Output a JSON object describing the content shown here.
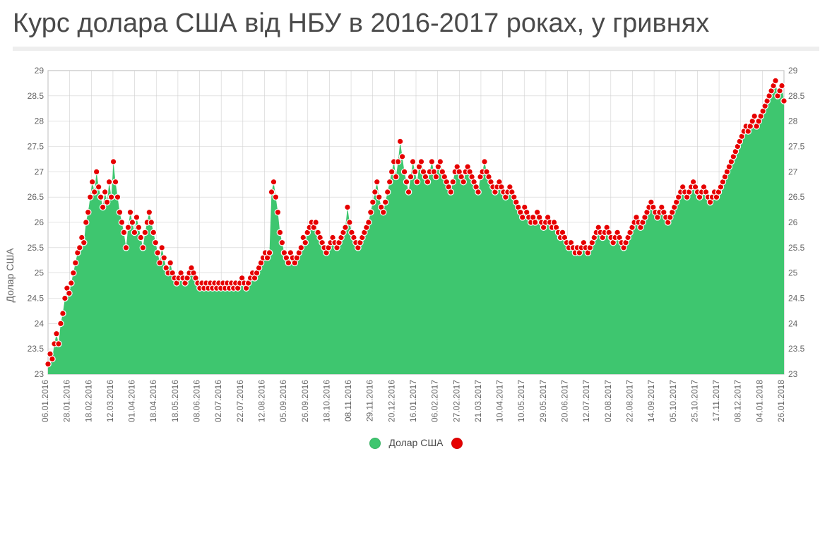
{
  "title": "Курс долара США від НБУ в 2016-2017 роках, у гривнях",
  "y_axis_label": "Долар США",
  "legend_label": "Долар США",
  "chart": {
    "type": "area_with_markers",
    "background_color": "#ffffff",
    "grid_color": "#d0d0d0",
    "area_fill_color": "#3ec66f",
    "marker_color": "#e60000",
    "marker_stroke": "#ffffff",
    "marker_radius": 4.2,
    "axis_text_color": "#666666",
    "axis_text_fontsize": 12,
    "ylim": [
      23,
      29
    ],
    "ytick_step": 0.5,
    "y_ticks": [
      23,
      23.5,
      24,
      24.5,
      25,
      25.5,
      26,
      26.5,
      27,
      27.5,
      28,
      28.5,
      29
    ],
    "x_tick_labels": [
      "06.01.2016",
      "28.01.2016",
      "18.02.2016",
      "12.03.2016",
      "01.04.2016",
      "18.04.2016",
      "18.05.2016",
      "08.06.2016",
      "02.07.2016",
      "22.07.2016",
      "12.08.2016",
      "05.09.2016",
      "26.09.2016",
      "18.10.2016",
      "08.11.2016",
      "29.11.2016",
      "20.12.2016",
      "16.01.2017",
      "06.02.2017",
      "27.02.2017",
      "21.03.2017",
      "10.04.2017",
      "10.05.2017",
      "29.05.2017",
      "20.06.2017",
      "12.07.2017",
      "02.08.2017",
      "22.08.2017",
      "14.09.2017",
      "05.10.2017",
      "25.10.2017",
      "17.11.2017",
      "08.12.2017",
      "04.01.2018",
      "26.01.2018"
    ],
    "series": [
      23.2,
      23.4,
      23.3,
      23.6,
      23.8,
      23.6,
      24.0,
      24.2,
      24.5,
      24.7,
      24.6,
      24.8,
      25.0,
      25.2,
      25.4,
      25.5,
      25.7,
      25.6,
      26.0,
      26.2,
      26.5,
      26.8,
      26.6,
      27.0,
      26.7,
      26.5,
      26.3,
      26.6,
      26.4,
      26.8,
      26.5,
      27.2,
      26.8,
      26.5,
      26.2,
      26.0,
      25.8,
      25.5,
      25.9,
      26.2,
      26.0,
      25.8,
      26.1,
      25.9,
      25.7,
      25.5,
      25.8,
      26.0,
      26.2,
      26.0,
      25.8,
      25.6,
      25.4,
      25.2,
      25.5,
      25.3,
      25.1,
      25.0,
      25.2,
      25.0,
      24.9,
      24.8,
      24.9,
      25.0,
      24.9,
      24.8,
      24.9,
      25.0,
      25.1,
      25.0,
      24.9,
      24.8,
      24.7,
      24.8,
      24.7,
      24.8,
      24.7,
      24.8,
      24.7,
      24.8,
      24.7,
      24.8,
      24.7,
      24.8,
      24.7,
      24.8,
      24.7,
      24.8,
      24.7,
      24.8,
      24.7,
      24.8,
      24.9,
      24.8,
      24.7,
      24.8,
      24.9,
      25.0,
      24.9,
      25.0,
      25.1,
      25.2,
      25.3,
      25.4,
      25.3,
      25.4,
      26.6,
      26.8,
      26.5,
      26.2,
      25.8,
      25.6,
      25.4,
      25.3,
      25.2,
      25.4,
      25.3,
      25.2,
      25.3,
      25.4,
      25.5,
      25.7,
      25.6,
      25.8,
      25.9,
      26.0,
      25.9,
      26.0,
      25.8,
      25.7,
      25.6,
      25.5,
      25.4,
      25.5,
      25.6,
      25.7,
      25.6,
      25.5,
      25.6,
      25.7,
      25.8,
      25.9,
      26.3,
      26.0,
      25.8,
      25.7,
      25.6,
      25.5,
      25.6,
      25.7,
      25.8,
      25.9,
      26.0,
      26.2,
      26.4,
      26.6,
      26.8,
      26.5,
      26.3,
      26.2,
      26.4,
      26.6,
      26.8,
      27.0,
      27.2,
      26.9,
      27.2,
      27.6,
      27.3,
      27.0,
      26.8,
      26.6,
      26.9,
      27.2,
      27.0,
      26.8,
      27.1,
      27.2,
      27.0,
      26.9,
      26.8,
      27.0,
      27.2,
      27.0,
      26.9,
      27.1,
      27.2,
      27.0,
      26.9,
      26.8,
      26.7,
      26.6,
      26.8,
      27.0,
      27.1,
      27.0,
      26.9,
      26.8,
      27.0,
      27.1,
      27.0,
      26.9,
      26.8,
      26.7,
      26.6,
      26.9,
      27.0,
      27.2,
      27.0,
      26.9,
      26.8,
      26.7,
      26.6,
      26.7,
      26.8,
      26.7,
      26.6,
      26.5,
      26.6,
      26.7,
      26.6,
      26.5,
      26.4,
      26.3,
      26.2,
      26.1,
      26.3,
      26.2,
      26.1,
      26.0,
      26.1,
      26.0,
      26.2,
      26.1,
      26.0,
      25.9,
      26.0,
      26.1,
      26.0,
      25.9,
      26.0,
      25.9,
      25.8,
      25.7,
      25.8,
      25.7,
      25.6,
      25.5,
      25.6,
      25.5,
      25.4,
      25.5,
      25.4,
      25.5,
      25.6,
      25.5,
      25.4,
      25.5,
      25.6,
      25.7,
      25.8,
      25.9,
      25.8,
      25.7,
      25.8,
      25.9,
      25.8,
      25.7,
      25.6,
      25.7,
      25.8,
      25.7,
      25.6,
      25.5,
      25.6,
      25.7,
      25.8,
      25.9,
      26.0,
      26.1,
      26.0,
      25.9,
      26.0,
      26.1,
      26.2,
      26.3,
      26.4,
      26.3,
      26.2,
      26.1,
      26.2,
      26.3,
      26.2,
      26.1,
      26.0,
      26.1,
      26.2,
      26.3,
      26.4,
      26.5,
      26.6,
      26.7,
      26.6,
      26.5,
      26.6,
      26.7,
      26.8,
      26.7,
      26.6,
      26.5,
      26.6,
      26.7,
      26.6,
      26.5,
      26.4,
      26.5,
      26.6,
      26.5,
      26.6,
      26.7,
      26.8,
      26.9,
      27.0,
      27.1,
      27.2,
      27.3,
      27.4,
      27.5,
      27.6,
      27.7,
      27.8,
      27.9,
      27.8,
      27.9,
      28.0,
      28.1,
      27.9,
      28.0,
      28.1,
      28.2,
      28.3,
      28.4,
      28.5,
      28.6,
      28.7,
      28.8,
      28.5,
      28.6,
      28.7,
      28.4
    ]
  }
}
